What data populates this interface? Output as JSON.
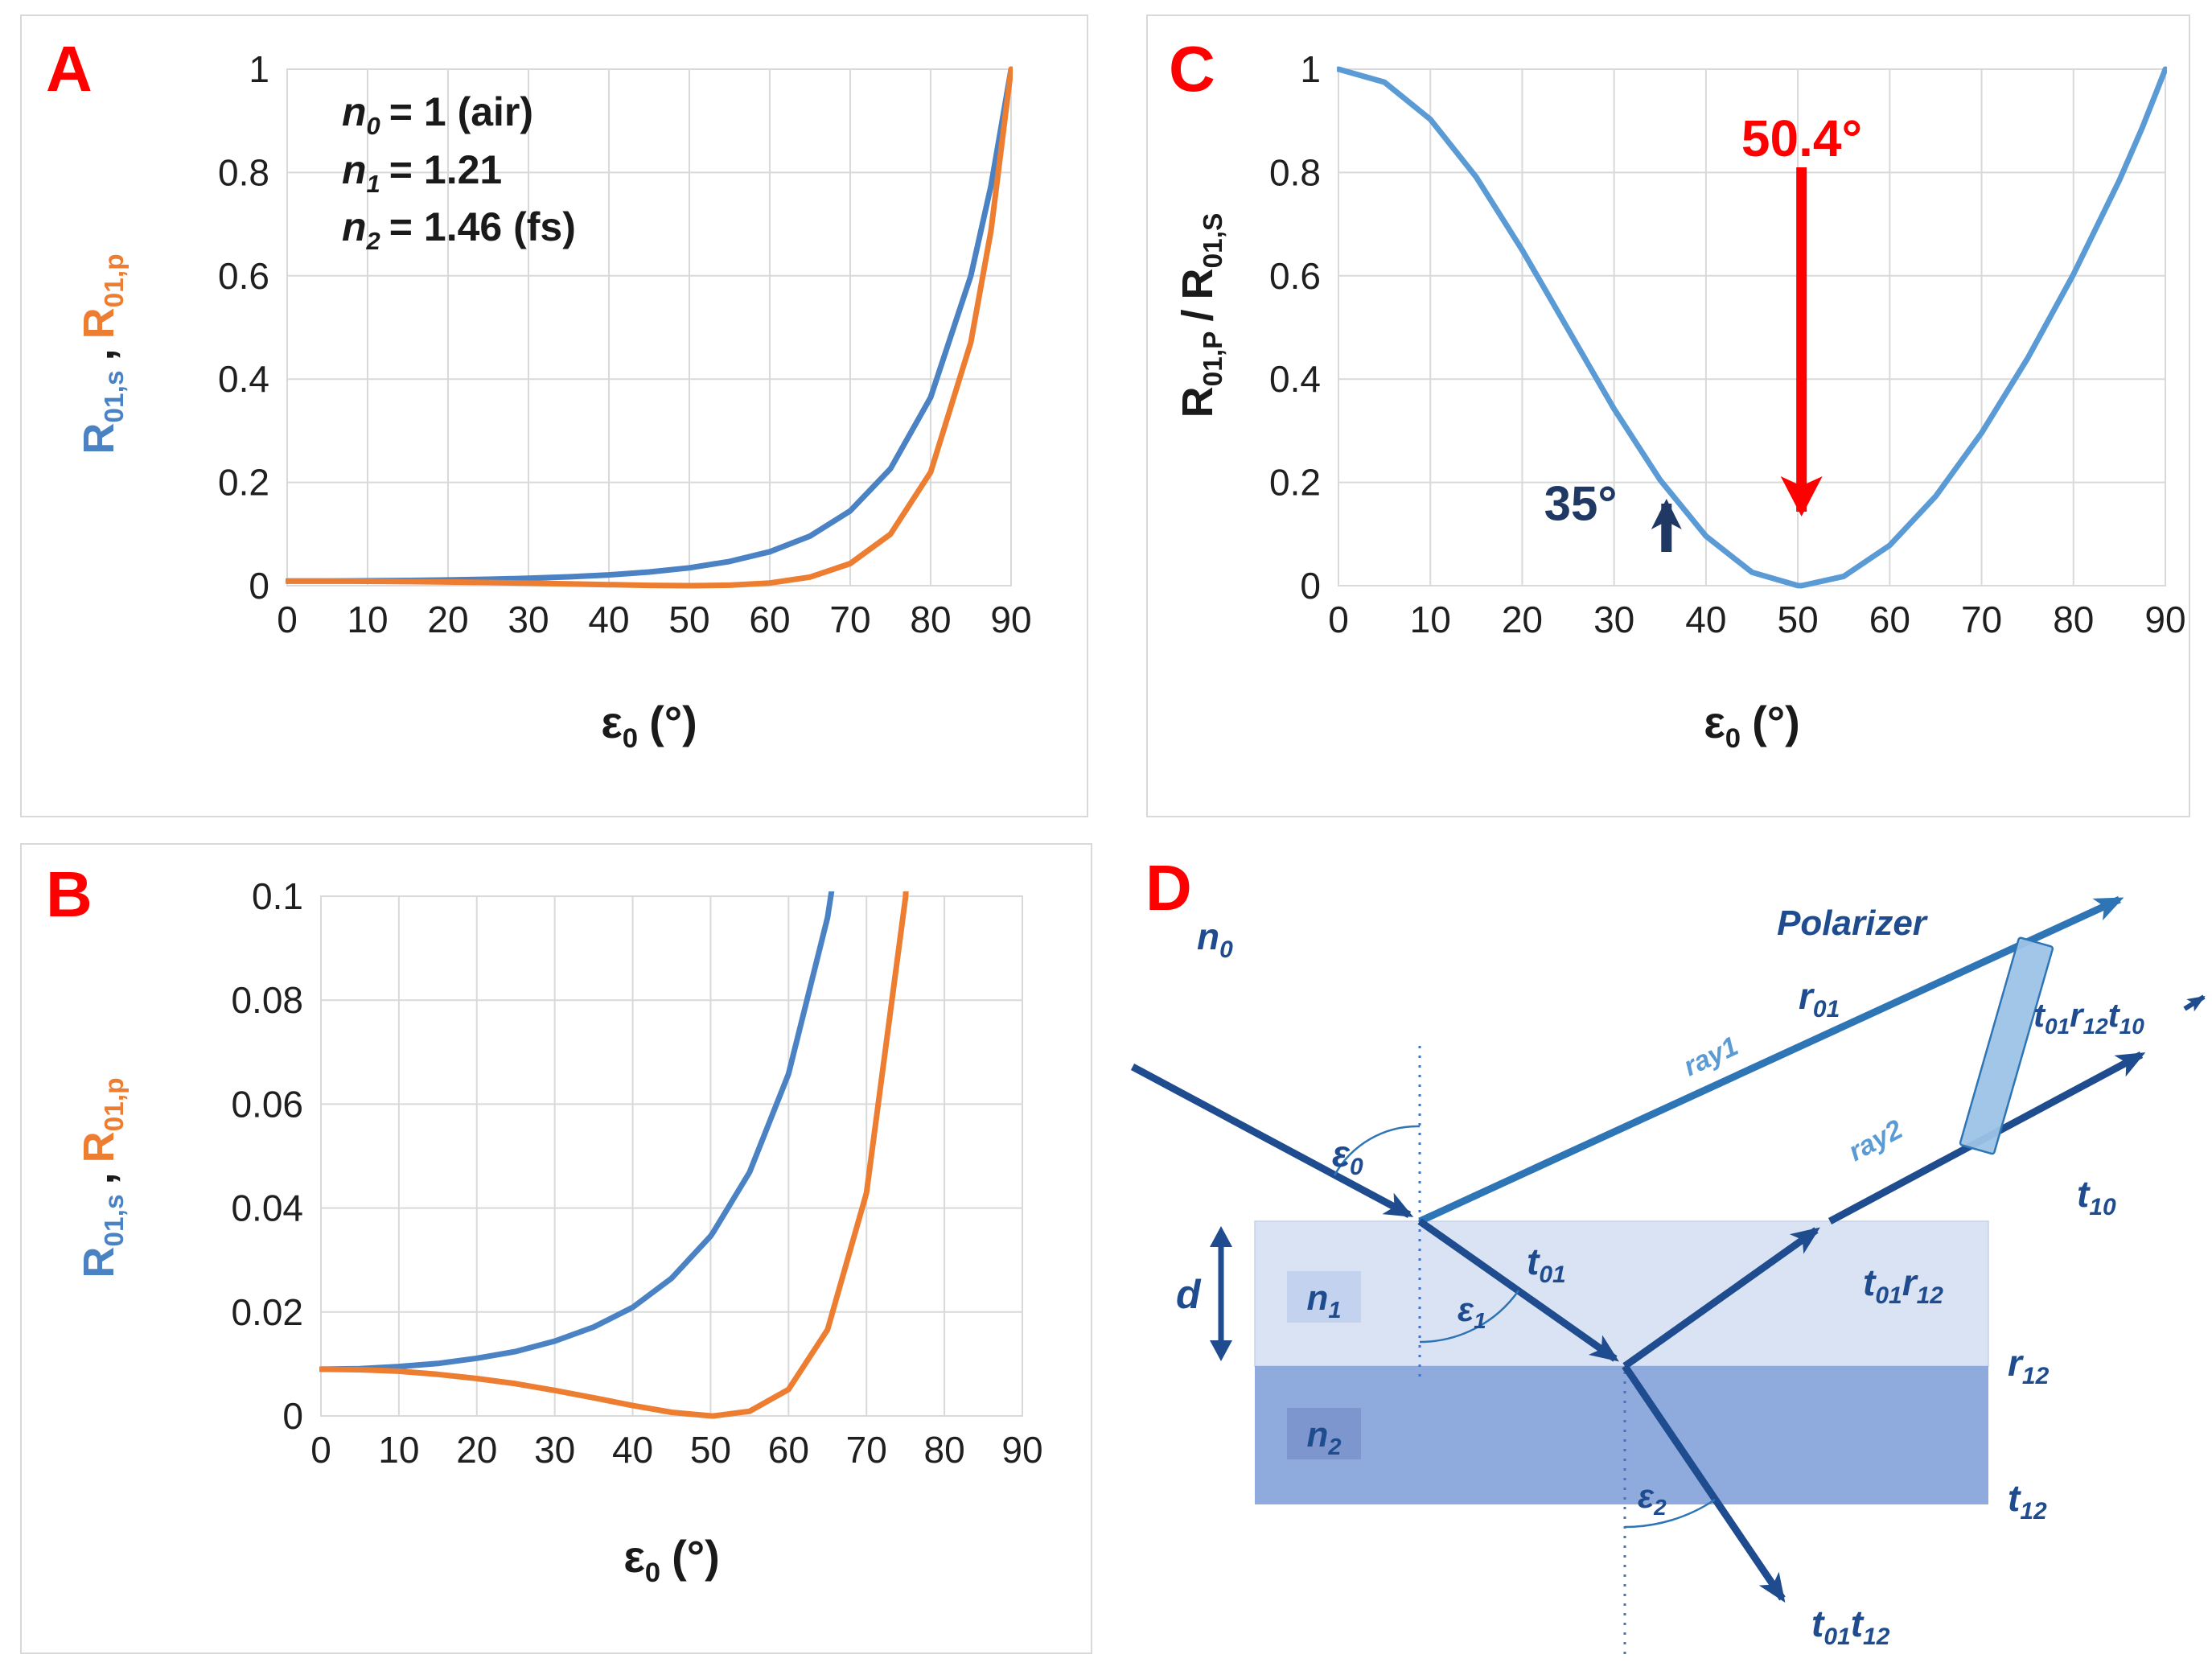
{
  "figure": {
    "panels": {
      "a": "A",
      "b": "B",
      "c": "C",
      "d": "D"
    }
  },
  "colors": {
    "series_s_blue": "#4A82C4",
    "series_p_orange": "#ED7D31",
    "ratio_blue": "#5B9BD5",
    "navy": "#1E4C8F",
    "light_blue": "#5B9BD5",
    "film_fill": "#DAE3F3",
    "substrate_fill": "#8FAADC",
    "polarizer_fill": "#9DC3E6",
    "annotation_red": "#FF0000",
    "annotation_navy": "#1F3864",
    "grid_gray": "#D9D9D9"
  },
  "chart_data": [
    {
      "id": "A",
      "type": "line",
      "title": "",
      "xlabel": "ε0 (°)",
      "ylabel": "R01,s , R01,p",
      "xlabel_rich": {
        "m": "ε",
        "s": "0",
        "r": "(°)"
      },
      "ylabel_rich": {
        "m1": "R",
        "s1": "01,s",
        "sep": ",",
        "m2": "R",
        "s2": "01,p"
      },
      "xlim": [
        0,
        90
      ],
      "ylim": [
        0,
        1
      ],
      "xticks": [
        0,
        10,
        20,
        30,
        40,
        50,
        60,
        70,
        80,
        90
      ],
      "yticks": [
        0,
        0.2,
        0.4,
        0.6,
        0.8,
        1
      ],
      "grid": true,
      "legend": "none",
      "x": [
        0,
        5,
        10,
        15,
        20,
        25,
        30,
        35,
        40,
        45,
        50,
        50.4,
        55,
        60,
        65,
        70,
        75,
        80,
        85,
        87.5,
        90
      ],
      "series": [
        {
          "name": "R01,s",
          "color": "#4A82C4",
          "values": [
            0.009,
            0.0091,
            0.0095,
            0.0101,
            0.0111,
            0.0124,
            0.0144,
            0.0171,
            0.0209,
            0.0265,
            0.0346,
            0.0355,
            0.0469,
            0.0658,
            0.0959,
            0.1448,
            0.2264,
            0.3646,
            0.6003,
            0.7742,
            1
          ]
        },
        {
          "name": "R01,p",
          "color": "#ED7D31",
          "values": [
            0.009,
            0.0089,
            0.0086,
            0.008,
            0.0072,
            0.0062,
            0.0049,
            0.0035,
            0.002,
            0.0007,
            1e-05,
            0,
            0.0009,
            0.0051,
            0.0166,
            0.0429,
            0.0997,
            0.2198,
            0.4715,
            0.6871,
            1
          ]
        }
      ],
      "annotations": [
        {
          "v": "n",
          "s": "0",
          "r": "= 1 (air)"
        },
        {
          "v": "n",
          "s": "1",
          "r": "= 1.21"
        },
        {
          "v": "n",
          "s": "2",
          "r": "= 1.46 (fs)"
        }
      ]
    },
    {
      "id": "B",
      "type": "line",
      "title": "",
      "xlabel": "ε0 (°)",
      "ylabel": "R01,s , R01,p",
      "xlabel_rich": {
        "m": "ε",
        "s": "0",
        "r": "(°)"
      },
      "ylabel_rich": {
        "m1": "R",
        "s1": "01,s",
        "sep": ",",
        "m2": "R",
        "s2": "01,p"
      },
      "xlim": [
        0,
        90
      ],
      "ylim": [
        0,
        0.1
      ],
      "xticks": [
        0,
        10,
        20,
        30,
        40,
        50,
        60,
        70,
        80,
        90
      ],
      "yticks": [
        0,
        0.02,
        0.04,
        0.06,
        0.08,
        0.1
      ],
      "grid": true,
      "legend": "none",
      "series_ref": "A",
      "note": "zoomed view of panel A data"
    },
    {
      "id": "C",
      "type": "line",
      "title": "",
      "xlabel": "ε0 (°)",
      "ylabel": "R01,P / R01,S",
      "xlabel_rich": {
        "m": "ε",
        "s": "0",
        "r": "(°)"
      },
      "ylabel_rich": {
        "m1": "R",
        "s1": "01,P",
        "sep": "/",
        "m2": "R",
        "s2": "01,S"
      },
      "xlim": [
        0,
        90
      ],
      "ylim": [
        0,
        1
      ],
      "xticks": [
        0,
        10,
        20,
        30,
        40,
        50,
        60,
        70,
        80,
        90
      ],
      "yticks": [
        0,
        0.2,
        0.4,
        0.6,
        0.8,
        1
      ],
      "grid": true,
      "legend": "none",
      "x": [
        0,
        5,
        10,
        15,
        20,
        25,
        30,
        35,
        40,
        45,
        50,
        50.4,
        55,
        60,
        65,
        70,
        75,
        80,
        85,
        87.5,
        90
      ],
      "series": [
        {
          "name": "R01,P / R01,S",
          "color": "#5B9BD5",
          "values": [
            1,
            0.975,
            0.903,
            0.791,
            0.65,
            0.496,
            0.342,
            0.205,
            0.096,
            0.026,
            0.0002,
            0,
            0.018,
            0.078,
            0.173,
            0.296,
            0.44,
            0.603,
            0.785,
            0.887,
            1
          ]
        }
      ],
      "annotations": [
        {
          "text": "50.4°",
          "x": 50.4,
          "color": "#FF0000",
          "arrow": "down"
        },
        {
          "text": "35°",
          "x": 35,
          "color": "#1F3864",
          "arrow": "up"
        }
      ]
    }
  ],
  "diagram": {
    "labels": {
      "n0": [
        {
          "t": "n",
          "s": "0"
        }
      ],
      "n1": [
        {
          "t": "n",
          "s": "1"
        }
      ],
      "n2": [
        {
          "t": "n",
          "s": "2"
        }
      ],
      "d": [
        {
          "t": "d"
        }
      ],
      "eps0": [
        {
          "t": "ε",
          "s": "0"
        }
      ],
      "eps1": [
        {
          "t": "ε",
          "s": "1"
        }
      ],
      "eps2": [
        {
          "t": "ε",
          "s": "2"
        }
      ],
      "r01": [
        {
          "t": "r",
          "s": "01"
        }
      ],
      "ray1": [
        {
          "t": "ray1"
        }
      ],
      "ray2": [
        {
          "t": "ray2"
        }
      ],
      "t01": [
        {
          "t": "t",
          "s": "01"
        }
      ],
      "t01r12": [
        {
          "t": "t",
          "s": "01"
        },
        {
          "t": "r",
          "s": "12"
        }
      ],
      "t01r12t10": [
        {
          "t": "t",
          "s": "01"
        },
        {
          "t": "r",
          "s": "12"
        },
        {
          "t": "t",
          "s": "10"
        }
      ],
      "t10": [
        {
          "t": "t",
          "s": "10"
        }
      ],
      "r12": [
        {
          "t": "r",
          "s": "12"
        }
      ],
      "t12": [
        {
          "t": "t",
          "s": "12"
        }
      ],
      "t01t12": [
        {
          "t": "t",
          "s": "01"
        },
        {
          "t": "t",
          "s": "12"
        }
      ],
      "polarizer": [
        {
          "t": "Polarizer"
        }
      ]
    }
  }
}
